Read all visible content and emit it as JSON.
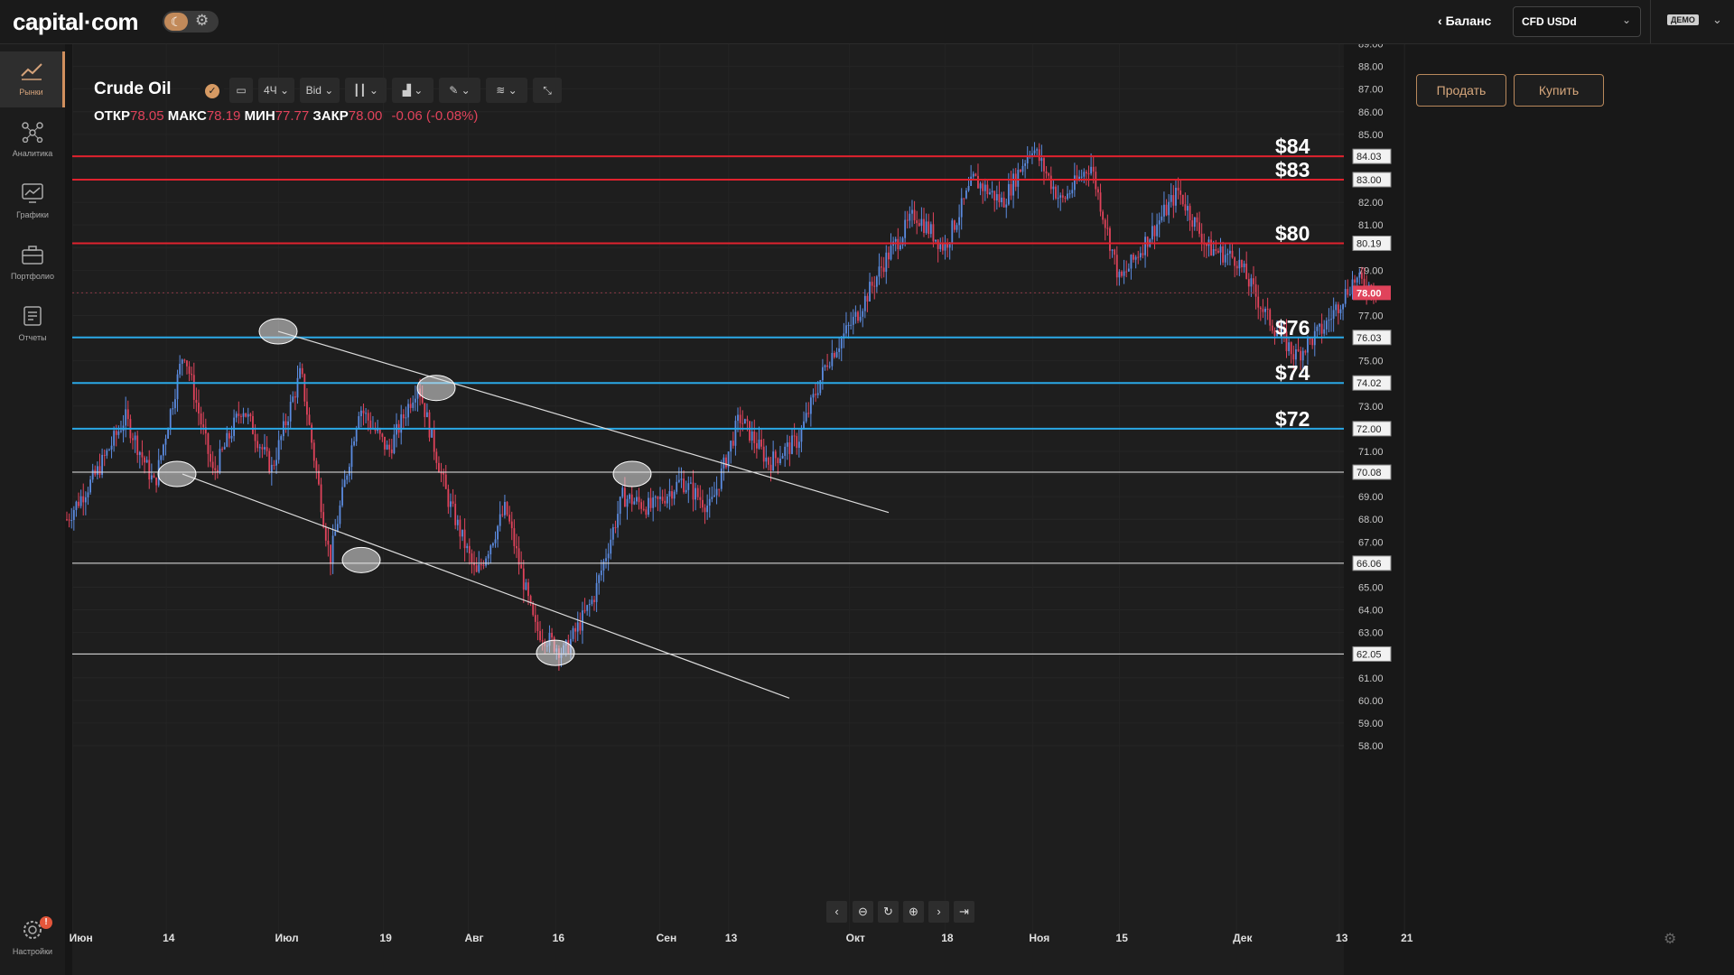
{
  "header": {
    "logo": "capital·com",
    "balance_label": "Баланс",
    "account_value": "CFD USDd",
    "mode_badge": "ДЕМО"
  },
  "sidebar": {
    "items": [
      {
        "label": "Рынки",
        "icon": "markets-chart-icon",
        "active": true
      },
      {
        "label": "Аналитика",
        "icon": "analytics-network-icon",
        "active": false
      },
      {
        "label": "Графики",
        "icon": "charts-monitor-icon",
        "active": false
      },
      {
        "label": "Портфолио",
        "icon": "portfolio-briefcase-icon",
        "active": false
      },
      {
        "label": "Отчеты",
        "icon": "reports-document-icon",
        "active": false
      }
    ],
    "settings_label": "Настройки",
    "settings_badge": "!"
  },
  "instrument": {
    "name": "Crude Oil",
    "open_label": "ОТКР",
    "open": "78.05",
    "high_label": "МАКС",
    "high": "78.19",
    "low_label": "МИН",
    "low": "77.77",
    "close_label": "ЗАКР",
    "close": "78.00",
    "change": "-0.06 (-0.08%)"
  },
  "toolbar": {
    "timeframe": "4Ч",
    "price_type": "Bid"
  },
  "actions": {
    "sell_label": "Продать",
    "buy_label": "Купить"
  },
  "colors": {
    "bull": "#5b8be0",
    "bear": "#e0435b",
    "resistance": "#e0222e",
    "support": "#2aa8e6",
    "accent": "#d08f5d"
  },
  "chart_data": {
    "type": "candlestick",
    "y_range": [
      57.5,
      89.5
    ],
    "y_ticks": [
      "58.00",
      "59.00",
      "60.00",
      "61.00",
      "62.00",
      "63.00",
      "64.00",
      "65.00",
      "66.00",
      "67.00",
      "68.00",
      "69.00",
      "70.00",
      "71.00",
      "72.00",
      "73.00",
      "74.00",
      "75.00",
      "76.00",
      "77.00",
      "78.00",
      "79.00",
      "80.00",
      "81.00",
      "82.00",
      "83.00",
      "84.00",
      "85.00",
      "86.00",
      "87.00",
      "88.00",
      "89.00"
    ],
    "x_labels": [
      "Июн",
      "14",
      "Июл",
      "19",
      "Авг",
      "16",
      "Сен",
      "13",
      "Окт",
      "18",
      "Ноя",
      "15",
      "Дек",
      "13",
      "21"
    ],
    "current_price": "78.00",
    "red_lines": [
      {
        "price": 84.03,
        "label": "84.03",
        "tag": "$84"
      },
      {
        "price": 83.0,
        "label": "83.00",
        "tag": "$83"
      },
      {
        "price": 80.19,
        "label": "80.19",
        "tag": "$80"
      }
    ],
    "blue_lines": [
      {
        "price": 76.03,
        "label": "76.03",
        "tag": "$76"
      },
      {
        "price": 74.02,
        "label": "74.02",
        "tag": "$74"
      },
      {
        "price": 72.0,
        "label": "72.00",
        "tag": "$72"
      }
    ],
    "white_lines": [
      {
        "price": 70.08,
        "label": "70.08"
      },
      {
        "price": 66.06,
        "label": "66.06"
      },
      {
        "price": 62.05,
        "label": "62.05"
      }
    ],
    "price_path": [
      68.0,
      70.0,
      72.5,
      69.5,
      75.5,
      70.0,
      73.0,
      70.2,
      74.5,
      66.2,
      73.0,
      71.0,
      74.0,
      69.0,
      65.5,
      68.5,
      63.2,
      62.1,
      64.5,
      69.0,
      68.5,
      69.7,
      68.5,
      72.5,
      70.5,
      71.5,
      75.0,
      77.0,
      79.5,
      81.5,
      80.0,
      83.0,
      82.0,
      84.5,
      82.0,
      83.7,
      78.5,
      80.5,
      82.5,
      80.0,
      79.5,
      77.0,
      75.2,
      76.5,
      78.6,
      78.0
    ]
  }
}
